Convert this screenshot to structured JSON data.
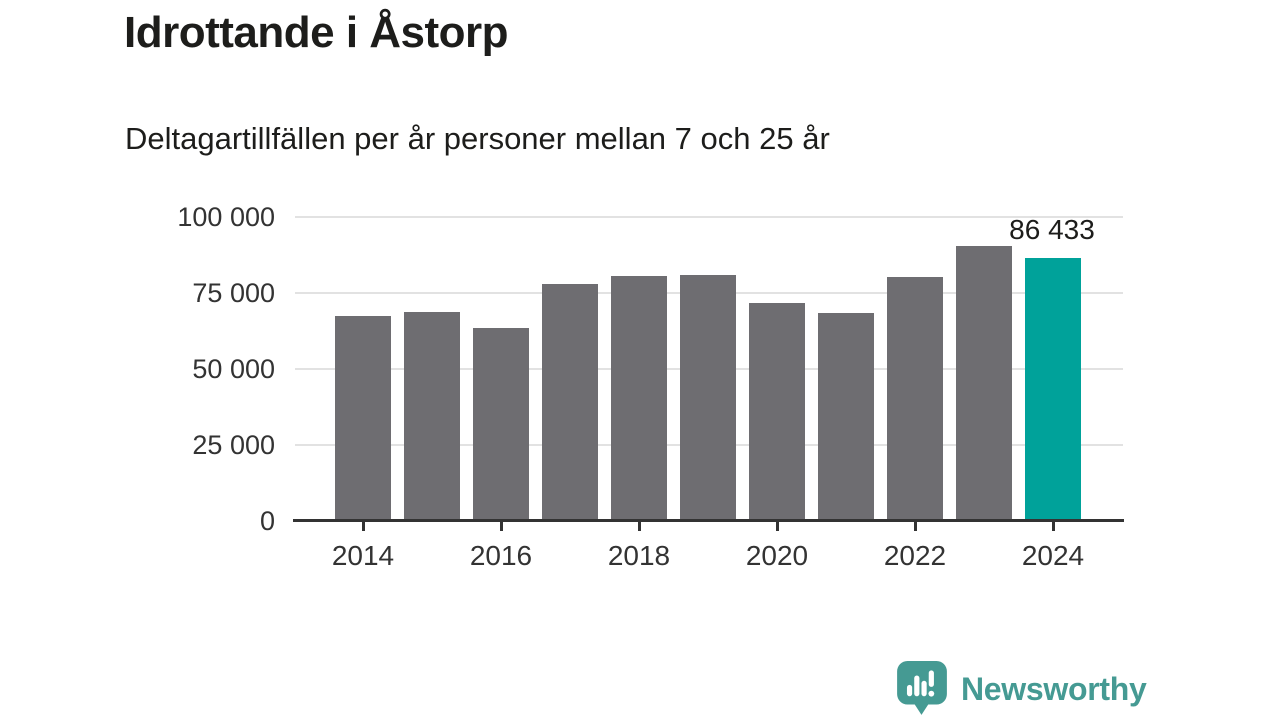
{
  "header": {
    "title": "Idrottande i Åstorp",
    "subtitle": "Deltagartillfällen per år personer mellan 7 och 25 år"
  },
  "chart_data": {
    "type": "bar",
    "title": "Idrottande i Åstorp",
    "subtitle": "Deltagartillfällen per år personer mellan 7 och 25 år",
    "categories": [
      "2014",
      "2015",
      "2016",
      "2017",
      "2018",
      "2019",
      "2020",
      "2021",
      "2022",
      "2023",
      "2024"
    ],
    "values": [
      67400,
      68600,
      63400,
      78100,
      80700,
      80900,
      71700,
      68500,
      80100,
      90600,
      86433
    ],
    "highlight_index": 10,
    "highlight_label": "86 433",
    "ylim": [
      0,
      100000
    ],
    "yticks": [
      0,
      25000,
      50000,
      75000,
      100000
    ],
    "ytick_labels": [
      "0",
      "25 000",
      "50 000",
      "75 000",
      "100 000"
    ],
    "xticks": [
      "2014",
      "2016",
      "2018",
      "2020",
      "2022",
      "2024"
    ],
    "grid": true,
    "legend_position": "none",
    "colors": {
      "bar": "#6e6d71",
      "highlight": "#00a29a",
      "gridline": "#e2e2e2",
      "axis": "#333333",
      "tick_text": "#333333",
      "label_text": "#1d1d1b"
    }
  },
  "branding": {
    "logo_text": "Newsworthy",
    "logo_color": "#459a93"
  }
}
